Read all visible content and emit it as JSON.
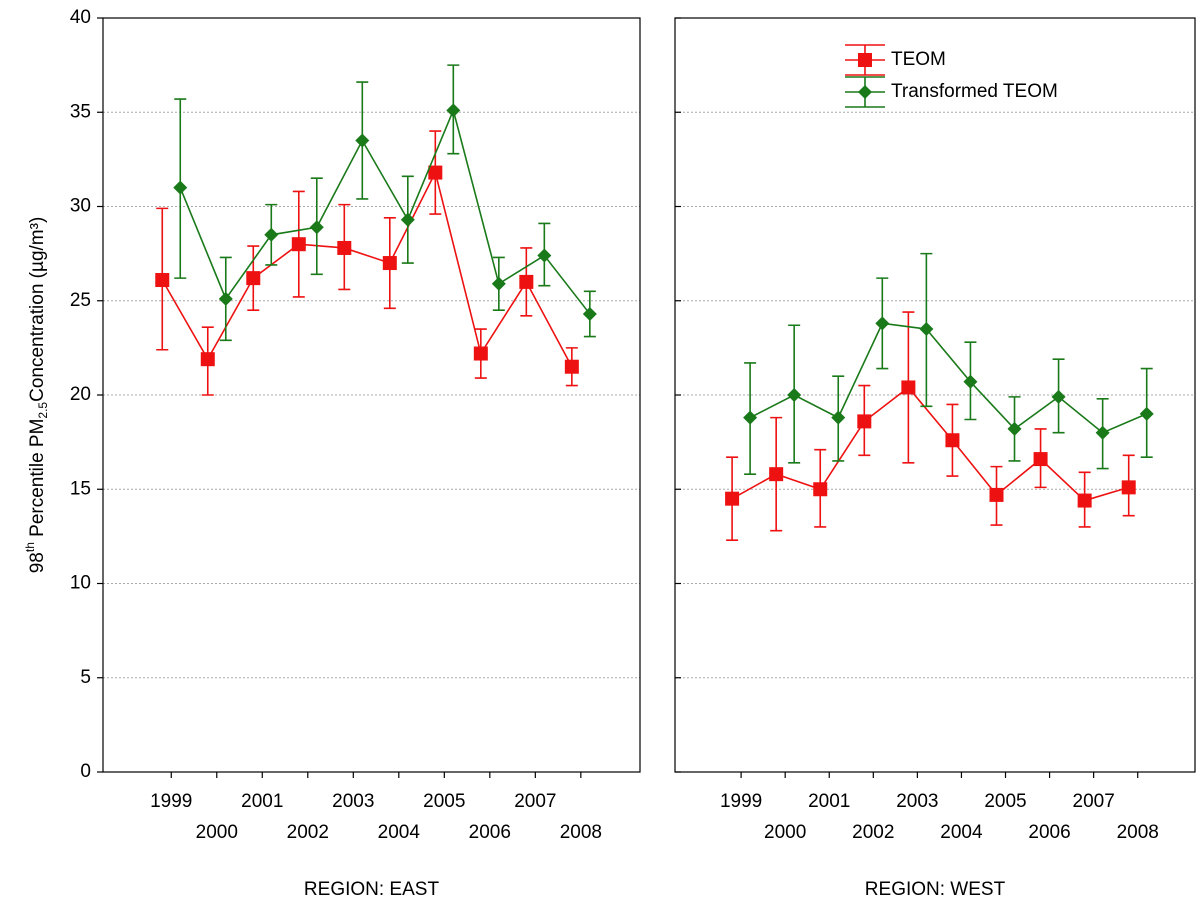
{
  "chart_data": {
    "type": "line",
    "ylabel": [
      "98",
      "th",
      " Percentile PM",
      "2.5",
      "Concentration (µg/m³)"
    ],
    "ylim": [
      0,
      40
    ],
    "yticks": [
      0,
      5,
      10,
      15,
      20,
      25,
      30,
      35,
      40
    ],
    "grid": true,
    "legend": "upper center",
    "legend_panel": 1,
    "categories": [
      "1999",
      "2000",
      "2001",
      "2002",
      "2003",
      "2004",
      "2005",
      "2006",
      "2007",
      "2008"
    ],
    "series": [
      {
        "name": "TEOM",
        "color": "#ee1111",
        "marker": "square"
      },
      {
        "name": "Transformed TEOM",
        "color": "#1a7a1a",
        "marker": "diamond"
      }
    ],
    "panels": [
      {
        "xlabel": "REGION: EAST",
        "data": [
          {
            "values": [
              26.1,
              21.9,
              26.2,
              28.0,
              27.8,
              27.0,
              31.8,
              22.2,
              26.0,
              21.5
            ],
            "lower": [
              22.4,
              20.0,
              24.5,
              25.2,
              25.6,
              24.6,
              29.6,
              20.9,
              24.2,
              20.5
            ],
            "upper": [
              29.9,
              23.6,
              27.9,
              30.8,
              30.1,
              29.4,
              34.0,
              23.5,
              27.8,
              22.5
            ]
          },
          {
            "values": [
              31.0,
              25.1,
              28.5,
              28.9,
              33.5,
              29.3,
              35.1,
              25.9,
              27.4,
              24.3
            ],
            "lower": [
              26.2,
              22.9,
              26.9,
              26.4,
              30.4,
              27.0,
              32.8,
              24.5,
              25.8,
              23.1
            ],
            "upper": [
              35.7,
              27.3,
              30.1,
              31.5,
              36.6,
              31.6,
              37.5,
              27.3,
              29.1,
              25.5
            ]
          }
        ]
      },
      {
        "xlabel": "REGION: WEST",
        "data": [
          {
            "values": [
              14.5,
              15.8,
              15.0,
              18.6,
              20.4,
              17.6,
              14.7,
              16.6,
              14.4,
              15.1
            ],
            "lower": [
              12.3,
              12.8,
              13.0,
              16.8,
              16.4,
              15.7,
              13.1,
              15.1,
              13.0,
              13.6
            ],
            "upper": [
              16.7,
              18.8,
              17.1,
              20.5,
              24.4,
              19.5,
              16.2,
              18.2,
              15.9,
              16.8
            ]
          },
          {
            "values": [
              18.8,
              20.0,
              18.8,
              23.8,
              23.5,
              20.7,
              18.2,
              19.9,
              18.0,
              19.0
            ],
            "lower": [
              15.8,
              16.4,
              16.5,
              21.4,
              19.4,
              18.7,
              16.5,
              18.0,
              16.1,
              16.7
            ],
            "upper": [
              21.7,
              23.7,
              21.0,
              26.2,
              27.5,
              22.8,
              19.9,
              21.9,
              19.8,
              21.4
            ]
          }
        ]
      }
    ]
  }
}
